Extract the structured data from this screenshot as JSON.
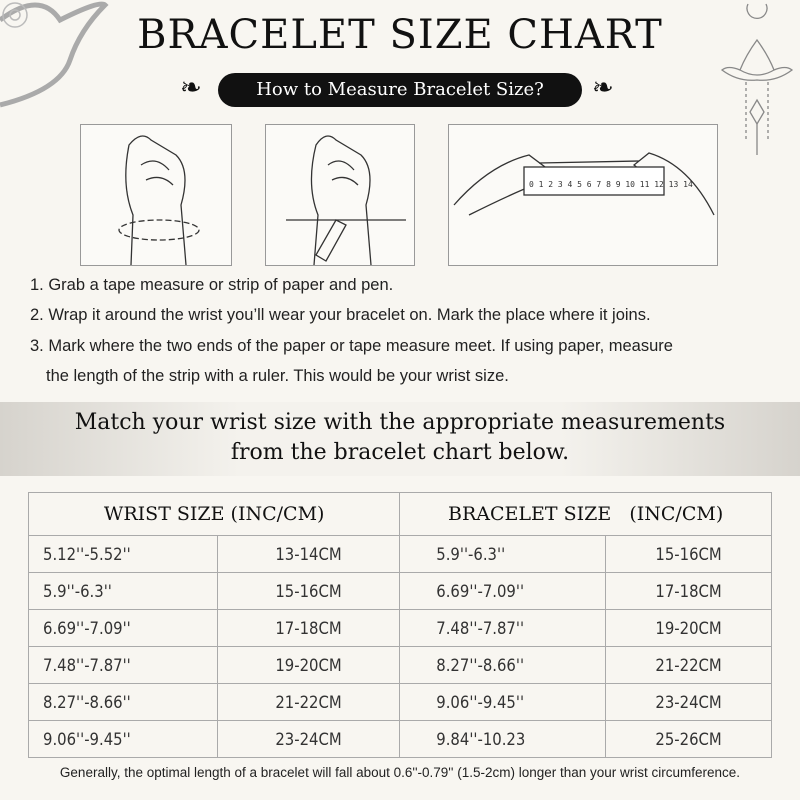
{
  "header": {
    "title": "BRACELET SIZE CHART",
    "subtitle": "How to Measure Bracelet Size?"
  },
  "illustrations": [
    {
      "icon": "hand-wrapping-tape-icon"
    },
    {
      "icon": "hand-marking-pen-icon"
    },
    {
      "icon": "hands-holding-ruler-icon",
      "ruler_numbers": "0 1 2 3 4 5 6 7 8 9 10 11 12 13 14"
    }
  ],
  "steps": [
    "1. Grab a tape measure or strip of paper and pen.",
    "2. Wrap it around the wrist you’ll wear your bracelet on. Mark the place where it joins.",
    "3. Mark where the two ends of the paper or tape measure meet. If using paper, measure",
    "the length of the strip with a ruler. This would be your wrist size."
  ],
  "band": {
    "line1": "Match your wrist size with the appropriate measurements",
    "line2": "from the bracelet chart below."
  },
  "table": {
    "headers": [
      "WRIST SIZE (INC/CM)",
      "BRACELET SIZE   (INC/CM)"
    ],
    "rows": [
      [
        "5.12''-5.52''",
        "13-14CM",
        "5.9''-6.3''",
        "15-16CM"
      ],
      [
        "5.9''-6.3''",
        "15-16CM",
        "6.69''-7.09''",
        "17-18CM"
      ],
      [
        "6.69''-7.09''",
        "17-18CM",
        "7.48''-7.87''",
        "19-20CM"
      ],
      [
        "7.48''-7.87''",
        "19-20CM",
        "8.27''-8.66''",
        "21-22CM"
      ],
      [
        "8.27''-8.66''",
        "21-22CM",
        "9.06''-9.45''",
        "23-24CM"
      ],
      [
        "9.06''-9.45''",
        "23-24CM",
        "9.84''-10.23",
        "25-26CM"
      ]
    ]
  },
  "note": "Generally, the optimal length of a bracelet will fall about 0.6''-0.79'' (1.5-2cm) longer than your wrist circumference."
}
